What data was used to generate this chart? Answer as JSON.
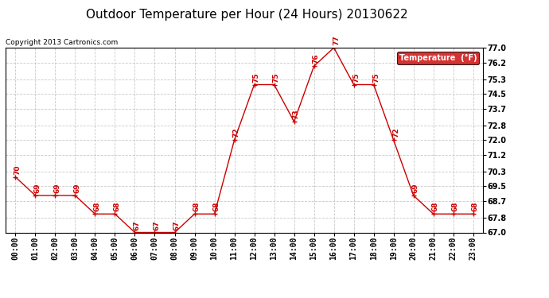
{
  "title": "Outdoor Temperature per Hour (24 Hours) 20130622",
  "copyright": "Copyright 2013 Cartronics.com",
  "legend_label": "Temperature  (°F)",
  "hours": [
    "00:00",
    "01:00",
    "02:00",
    "03:00",
    "04:00",
    "05:00",
    "06:00",
    "07:00",
    "08:00",
    "09:00",
    "10:00",
    "11:00",
    "12:00",
    "13:00",
    "14:00",
    "15:00",
    "16:00",
    "17:00",
    "18:00",
    "19:00",
    "20:00",
    "21:00",
    "22:00",
    "23:00"
  ],
  "temps": [
    70,
    69,
    69,
    69,
    68,
    68,
    67,
    67,
    67,
    68,
    68,
    72,
    75,
    75,
    73,
    76,
    77,
    75,
    75,
    72,
    69,
    68,
    68,
    68
  ],
  "ylim": [
    67.0,
    77.0
  ],
  "yticks": [
    67.0,
    67.8,
    68.7,
    69.5,
    70.3,
    71.2,
    72.0,
    72.8,
    73.7,
    74.5,
    75.3,
    76.2,
    77.0
  ],
  "line_color": "#cc0000",
  "marker": "+",
  "bg_color": "#ffffff",
  "grid_color": "#bbbbbb",
  "legend_bg": "#cc0000",
  "legend_text_color": "#ffffff",
  "title_fontsize": 11,
  "label_fontsize": 7,
  "annot_fontsize": 6.5,
  "copyright_fontsize": 6.5
}
